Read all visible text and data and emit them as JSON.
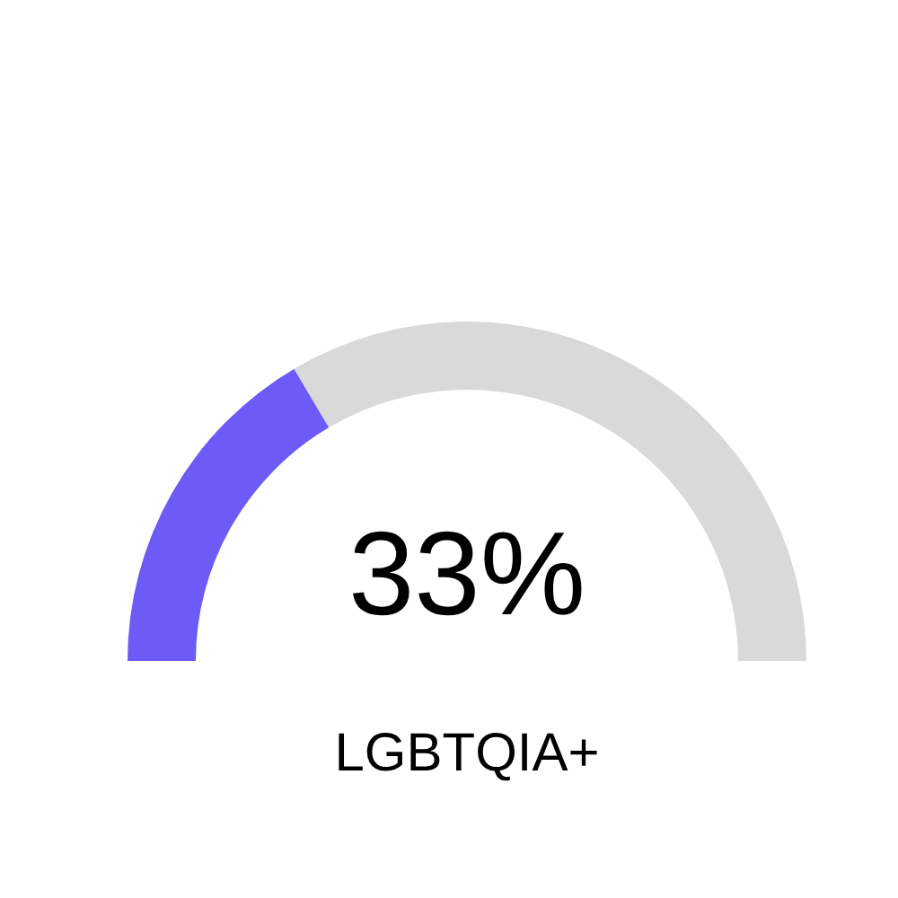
{
  "chart_data": {
    "type": "donut",
    "categories": [
      null,
      null
    ],
    "values": [
      33,
      67
    ],
    "colors": [
      "#6e5af6",
      "#d9d9d9"
    ],
    "annotations": [
      "33%",
      "LGBTQIA+"
    ]
  }
}
